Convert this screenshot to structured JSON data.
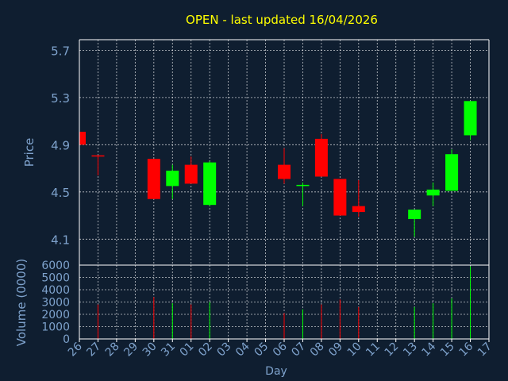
{
  "title": "OPEN - last updated 16/04/2026",
  "colors": {
    "background": "#0f1e30",
    "title": "#ffff00",
    "axis_text": "#7ea2cc",
    "grid": "#ffffff",
    "up": "#00ff00",
    "down": "#ff0000",
    "wick": "#ffffff"
  },
  "chart_data": [
    {
      "type": "candlestick",
      "ylabel": "Price",
      "ylim": [
        3.88,
        5.79
      ],
      "yticks": [
        4.1,
        4.5,
        4.9,
        5.3,
        5.7
      ],
      "x_labels": [
        "26",
        "27",
        "28",
        "29",
        "30",
        "31",
        "01",
        "02",
        "03",
        "04",
        "05",
        "06",
        "07",
        "08",
        "09",
        "10",
        "11",
        "12",
        "13",
        "14",
        "15",
        "16",
        "17"
      ],
      "grid": true,
      "candles": [
        {
          "day": "26",
          "open": 5.01,
          "close": 4.9,
          "high": 5.01,
          "low": 4.9
        },
        {
          "day": "27",
          "open": 4.81,
          "close": 4.8,
          "high": 4.81,
          "low": 4.64
        },
        {
          "day": "30",
          "open": 4.78,
          "close": 4.44,
          "high": 4.78,
          "low": 4.44
        },
        {
          "day": "31",
          "open": 4.55,
          "close": 4.68,
          "high": 4.73,
          "low": 4.44
        },
        {
          "day": "01",
          "open": 4.73,
          "close": 4.57,
          "high": 4.8,
          "low": 4.57
        },
        {
          "day": "02",
          "open": 4.39,
          "close": 4.75,
          "high": 4.76,
          "low": 4.38
        },
        {
          "day": "06",
          "open": 4.73,
          "close": 4.61,
          "high": 4.87,
          "low": 4.57
        },
        {
          "day": "07",
          "open": 4.55,
          "close": 4.56,
          "high": 4.58,
          "low": 4.38
        },
        {
          "day": "08",
          "open": 4.95,
          "close": 4.63,
          "high": 4.99,
          "low": 4.63
        },
        {
          "day": "09",
          "open": 4.61,
          "close": 4.3,
          "high": 4.61,
          "low": 4.3
        },
        {
          "day": "10",
          "open": 4.38,
          "close": 4.33,
          "high": 4.6,
          "low": 4.29
        },
        {
          "day": "13",
          "open": 4.27,
          "close": 4.35,
          "high": 4.35,
          "low": 4.12
        },
        {
          "day": "14",
          "open": 4.47,
          "close": 4.52,
          "high": 4.58,
          "low": 4.38
        },
        {
          "day": "15",
          "open": 4.51,
          "close": 4.82,
          "high": 4.86,
          "low": 4.51
        },
        {
          "day": "16",
          "open": 4.98,
          "close": 5.27,
          "high": 5.27,
          "low": 4.94
        }
      ]
    },
    {
      "type": "bar",
      "xlabel": "Day",
      "ylabel": "Volume (0000)",
      "ylim": [
        0,
        6000
      ],
      "yticks": [
        0,
        1000,
        2000,
        3000,
        4000,
        5000,
        6000
      ],
      "bars": [
        {
          "day": "27",
          "value": 2800,
          "direction": "down"
        },
        {
          "day": "30",
          "value": 3400,
          "direction": "down"
        },
        {
          "day": "31",
          "value": 2900,
          "direction": "up"
        },
        {
          "day": "01",
          "value": 2800,
          "direction": "down"
        },
        {
          "day": "02",
          "value": 3000,
          "direction": "up"
        },
        {
          "day": "06",
          "value": 2100,
          "direction": "down"
        },
        {
          "day": "07",
          "value": 2400,
          "direction": "up"
        },
        {
          "day": "08",
          "value": 2800,
          "direction": "down"
        },
        {
          "day": "09",
          "value": 3200,
          "direction": "down"
        },
        {
          "day": "10",
          "value": 2600,
          "direction": "down"
        },
        {
          "day": "13",
          "value": 2600,
          "direction": "up"
        },
        {
          "day": "14",
          "value": 2900,
          "direction": "up"
        },
        {
          "day": "15",
          "value": 3300,
          "direction": "up"
        },
        {
          "day": "16",
          "value": 5900,
          "direction": "up"
        }
      ]
    }
  ]
}
